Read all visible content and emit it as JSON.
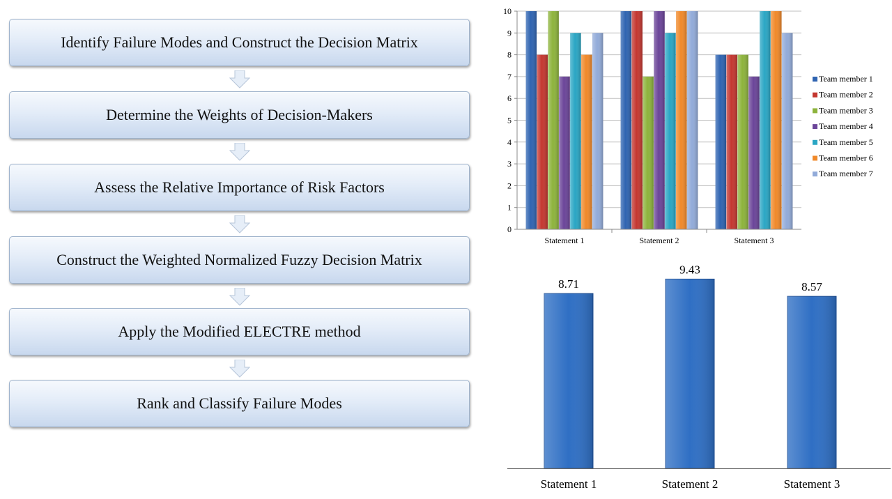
{
  "flowchart": {
    "steps": [
      {
        "label": "Identify Failure Modes and Construct the Decision Matrix"
      },
      {
        "label": "Determine the Weights of Decision-Makers"
      },
      {
        "label": "Assess the Relative Importance of Risk Factors"
      },
      {
        "label": "Construct the Weighted Normalized Fuzzy Decision Matrix"
      },
      {
        "label": "Apply the Modified ELECTRE method"
      },
      {
        "label": "Rank and Classify Failure Modes"
      }
    ],
    "colors": {
      "box_top": "#f6f9fd",
      "box_bottom": "#c8d8ee",
      "box_border": "#9fb3cc",
      "arrow": "#e6eef8"
    }
  },
  "chart_data": [
    {
      "type": "bar",
      "title": "",
      "xlabel": "",
      "ylabel": "",
      "categories": [
        "Statement 1",
        "Statement 2",
        "Statement 3"
      ],
      "ylim": [
        0,
        10
      ],
      "yticks": [
        0,
        1,
        2,
        3,
        4,
        5,
        6,
        7,
        8,
        9,
        10
      ],
      "grid": true,
      "legend": "right",
      "series": [
        {
          "name": "Team member 1",
          "color": "#2f64b1",
          "values": [
            10,
            10,
            8
          ]
        },
        {
          "name": "Team member 2",
          "color": "#c43730",
          "values": [
            8,
            10,
            8
          ]
        },
        {
          "name": "Team member 3",
          "color": "#8db33c",
          "values": [
            10,
            7,
            8
          ]
        },
        {
          "name": "Team member 4",
          "color": "#6b4599",
          "values": [
            7,
            10,
            7
          ]
        },
        {
          "name": "Team member 5",
          "color": "#2aa6c4",
          "values": [
            9,
            9,
            10
          ]
        },
        {
          "name": "Team member 6",
          "color": "#f0892a",
          "values": [
            8,
            10,
            10
          ]
        },
        {
          "name": "Team member 7",
          "color": "#92abd9",
          "values": [
            9,
            10,
            9
          ]
        }
      ]
    },
    {
      "type": "bar",
      "title": "",
      "xlabel": "",
      "ylabel": "",
      "categories": [
        "Statement 1",
        "Statement 2",
        "Statement 3"
      ],
      "values": [
        8.71,
        9.43,
        8.57
      ],
      "value_labels": [
        "8.71",
        "9.43",
        "8.57"
      ],
      "ylim": [
        0,
        10
      ],
      "grid": false,
      "color": "#2f6fc4"
    }
  ]
}
